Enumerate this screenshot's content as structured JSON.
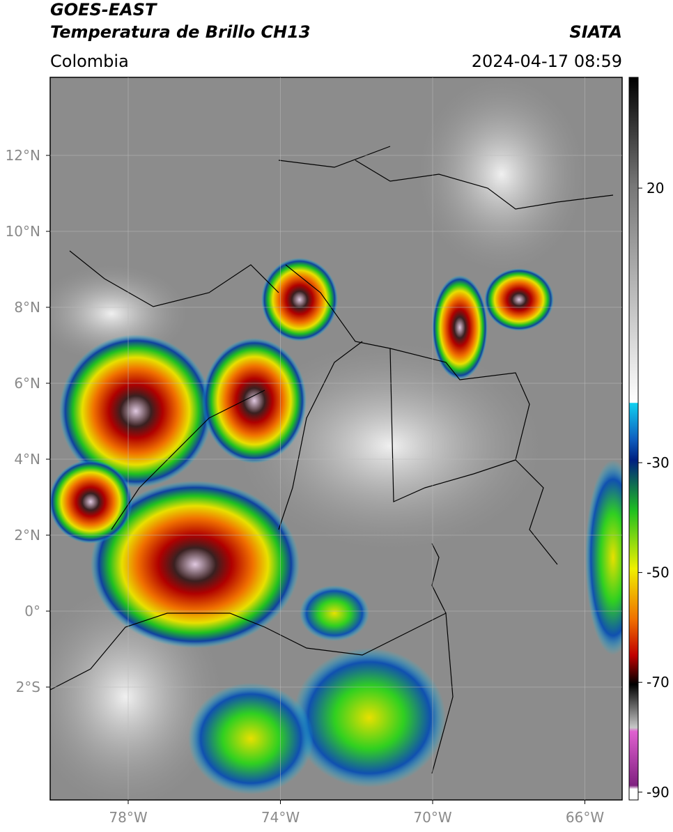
{
  "header": {
    "title": "GOES-EAST",
    "subtitle": "Temperatura de Brillo CH13",
    "source": "SIATA",
    "region": "Colombia",
    "timestamp": "2024-04-17 08:59"
  },
  "map": {
    "lon_ticks": [
      "78°W",
      "74°W",
      "70°W",
      "66°W"
    ],
    "lat_ticks": [
      "12°N",
      "10°N",
      "8°N",
      "6°N",
      "4°N",
      "2°N",
      "0°",
      "2°S"
    ]
  },
  "colorbar": {
    "ticks": [
      20,
      -30,
      -50,
      -70,
      -90
    ]
  }
}
